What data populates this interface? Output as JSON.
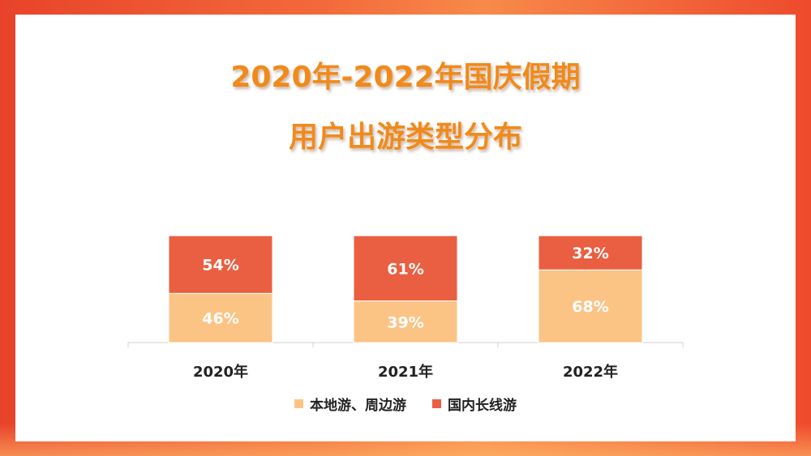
{
  "title": {
    "line1": "2020年-2022年国庆假期",
    "line2": "用户出游类型分布"
  },
  "colors": {
    "local": "#fbc485",
    "long": "#ea5f41",
    "title": "#f08a1c"
  },
  "chart_data": {
    "type": "bar",
    "stacked": true,
    "percent": true,
    "categories": [
      "2020年",
      "2021年",
      "2022年"
    ],
    "series": [
      {
        "name": "本地游、周边游",
        "values": [
          46,
          39,
          68
        ],
        "labels": [
          "46%",
          "39%",
          "68%"
        ]
      },
      {
        "name": "国内长线游",
        "values": [
          54,
          61,
          32
        ],
        "labels": [
          "54%",
          "61%",
          "32%"
        ]
      }
    ],
    "ylim": [
      0,
      100
    ],
    "legend": "bottom",
    "grid": false
  }
}
